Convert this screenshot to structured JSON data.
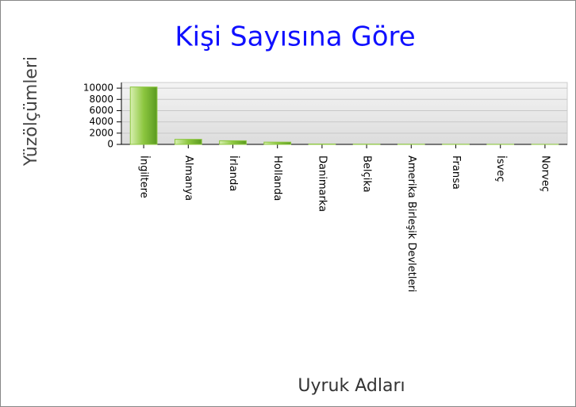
{
  "chart_data": {
    "type": "bar",
    "title": "Kişi Sayısına Göre",
    "x_label": "Uyruk Adları",
    "y_label": "Yüzölçümleri",
    "categories": [
      "İngiltere",
      "Almanya",
      "İrlanda",
      "Hollanda",
      "Danimarka",
      "Belçika",
      "Amerika Birleşik Devletleri",
      "Fransa",
      "İsveç",
      "Norveç"
    ],
    "values": [
      10200,
      900,
      650,
      400,
      60,
      40,
      30,
      20,
      15,
      10
    ],
    "color": "#8cc63f",
    "ylim": [
      0,
      11000
    ],
    "yticks": [
      0,
      2000,
      4000,
      6000,
      8000,
      10000
    ],
    "grid": true
  }
}
